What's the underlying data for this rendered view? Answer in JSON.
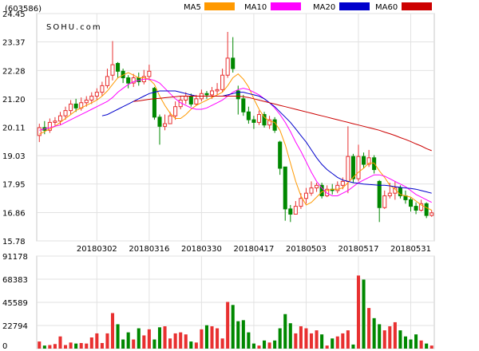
{
  "chart_data": [
    {
      "type": "candlestick",
      "code": "(603586)",
      "watermark": "SOHU.com",
      "y_ticks": [
        "24.45",
        "23.37",
        "22.28",
        "21.20",
        "20.11",
        "19.03",
        "17.95",
        "16.86",
        "15.78"
      ],
      "ylim": [
        15.78,
        24.45
      ],
      "x_labels": [
        {
          "label": "20180302",
          "index": 11
        },
        {
          "label": "20180316",
          "index": 21
        },
        {
          "label": "20180330",
          "index": 31
        },
        {
          "label": "20180417",
          "index": 41
        },
        {
          "label": "20180503",
          "index": 51
        },
        {
          "label": "20180517",
          "index": 61
        },
        {
          "label": "20180531",
          "index": 71
        }
      ],
      "legend": [
        {
          "name": "MA5",
          "color": "#ff9900"
        },
        {
          "name": "MA10",
          "color": "#ff00ff"
        },
        {
          "name": "MA20",
          "color": "#0000cc"
        },
        {
          "name": "MA60",
          "color": "#cc0000"
        }
      ],
      "up_color": "#e83030",
      "down_color": "#008800",
      "candles": [
        [
          19.8,
          20.1,
          19.55,
          20.25
        ],
        [
          20.1,
          20.0,
          19.85,
          20.35
        ],
        [
          20.0,
          20.3,
          19.9,
          20.45
        ],
        [
          20.3,
          20.35,
          20.15,
          20.5
        ],
        [
          20.35,
          20.55,
          20.2,
          20.7
        ],
        [
          20.55,
          20.75,
          20.4,
          20.9
        ],
        [
          20.75,
          21.0,
          20.6,
          21.15
        ],
        [
          21.0,
          20.85,
          20.7,
          21.2
        ],
        [
          20.85,
          21.05,
          20.75,
          21.25
        ],
        [
          21.05,
          21.15,
          20.9,
          21.3
        ],
        [
          21.15,
          21.3,
          21.0,
          21.45
        ],
        [
          21.3,
          21.45,
          21.15,
          21.6
        ],
        [
          21.45,
          21.7,
          21.3,
          21.85
        ],
        [
          21.7,
          22.05,
          21.6,
          22.35
        ],
        [
          22.1,
          22.5,
          21.9,
          23.4
        ],
        [
          22.55,
          22.25,
          22.0,
          22.6
        ],
        [
          22.25,
          22.0,
          21.8,
          22.35
        ],
        [
          22.0,
          21.8,
          21.6,
          22.1
        ],
        [
          21.8,
          22.0,
          21.65,
          22.15
        ],
        [
          22.0,
          21.85,
          21.7,
          22.2
        ],
        [
          21.85,
          22.05,
          21.75,
          22.3
        ],
        [
          22.05,
          22.25,
          21.9,
          22.5
        ],
        [
          21.6,
          20.5,
          20.4,
          21.65
        ],
        [
          20.5,
          20.15,
          19.45,
          20.6
        ],
        [
          20.15,
          20.25,
          20.0,
          20.6
        ],
        [
          20.25,
          20.55,
          20.3,
          20.7
        ],
        [
          20.55,
          20.9,
          20.4,
          21.1
        ],
        [
          20.9,
          21.15,
          20.8,
          21.3
        ],
        [
          21.15,
          21.3,
          21.0,
          21.45
        ],
        [
          21.3,
          21.0,
          20.9,
          21.4
        ],
        [
          21.0,
          21.2,
          20.95,
          21.35
        ],
        [
          21.2,
          21.4,
          21.1,
          21.55
        ],
        [
          21.4,
          21.35,
          21.2,
          21.5
        ],
        [
          21.35,
          21.5,
          21.2,
          21.65
        ],
        [
          21.5,
          21.55,
          21.35,
          21.8
        ],
        [
          21.55,
          22.1,
          21.45,
          22.35
        ],
        [
          22.1,
          22.75,
          22.0,
          23.75
        ],
        [
          22.75,
          22.35,
          22.2,
          23.55
        ],
        [
          21.5,
          21.2,
          20.6,
          21.7
        ],
        [
          21.2,
          20.7,
          20.55,
          21.35
        ],
        [
          20.7,
          20.4,
          20.25,
          20.9
        ],
        [
          20.4,
          20.3,
          20.05,
          20.55
        ],
        [
          20.3,
          20.6,
          20.2,
          20.75
        ],
        [
          20.6,
          20.2,
          20.1,
          20.7
        ],
        [
          20.2,
          20.4,
          20.05,
          20.55
        ],
        [
          20.4,
          20.0,
          19.9,
          20.5
        ],
        [
          19.55,
          18.55,
          18.3,
          19.6
        ],
        [
          18.6,
          17.0,
          16.55,
          18.6
        ],
        [
          17.0,
          16.8,
          16.5,
          17.15
        ],
        [
          16.8,
          17.1,
          16.85,
          17.3
        ],
        [
          17.1,
          17.4,
          17.0,
          17.6
        ],
        [
          17.4,
          17.6,
          17.2,
          17.8
        ],
        [
          17.6,
          17.8,
          17.5,
          18.05
        ],
        [
          17.8,
          17.9,
          17.65,
          18.0
        ],
        [
          17.9,
          17.5,
          17.4,
          18.0
        ],
        [
          17.5,
          17.75,
          17.45,
          17.9
        ],
        [
          17.75,
          17.7,
          17.55,
          17.95
        ],
        [
          17.7,
          17.9,
          17.6,
          18.05
        ],
        [
          17.9,
          18.05,
          17.75,
          18.2
        ],
        [
          18.05,
          19.0,
          17.6,
          20.15
        ],
        [
          19.0,
          18.15,
          18.0,
          19.1
        ],
        [
          18.15,
          19.0,
          18.05,
          19.45
        ],
        [
          19.0,
          18.7,
          18.55,
          19.15
        ],
        [
          18.7,
          18.95,
          18.6,
          19.25
        ],
        [
          18.95,
          18.5,
          18.35,
          19.05
        ],
        [
          18.05,
          17.05,
          16.5,
          18.1
        ],
        [
          17.05,
          17.5,
          17.0,
          17.7
        ],
        [
          17.5,
          17.6,
          17.4,
          18.0
        ],
        [
          17.6,
          17.8,
          17.35,
          18.05
        ],
        [
          17.8,
          17.5,
          17.4,
          17.9
        ],
        [
          17.5,
          17.35,
          17.2,
          17.7
        ],
        [
          17.35,
          17.1,
          16.9,
          17.45
        ],
        [
          17.1,
          16.95,
          16.8,
          17.25
        ],
        [
          16.95,
          17.2,
          16.9,
          17.35
        ],
        [
          17.2,
          16.75,
          16.65,
          17.25
        ],
        [
          16.75,
          16.85,
          16.7,
          16.95
        ]
      ],
      "ma_series": [
        {
          "name": "MA5",
          "color": "#ff9900",
          "values": [
            19.85,
            19.95,
            20.05,
            20.15,
            20.3,
            20.45,
            20.6,
            20.75,
            20.85,
            20.95,
            21.05,
            21.15,
            21.3,
            21.5,
            21.75,
            22.0,
            22.1,
            22.2,
            22.1,
            22.0,
            22.0,
            21.95,
            21.75,
            21.3,
            20.95,
            20.65,
            20.45,
            20.45,
            20.6,
            20.8,
            20.95,
            21.05,
            21.15,
            21.25,
            21.35,
            21.45,
            21.7,
            22.0,
            22.15,
            21.95,
            21.65,
            21.2,
            20.8,
            20.5,
            20.35,
            20.3,
            20.0,
            19.45,
            18.75,
            18.05,
            17.5,
            17.15,
            17.25,
            17.45,
            17.65,
            17.7,
            17.75,
            17.75,
            17.8,
            18.0,
            18.2,
            18.4,
            18.55,
            18.75,
            18.75,
            18.45,
            18.2,
            17.9,
            17.75,
            17.55,
            17.5,
            17.45,
            17.3,
            17.15,
            17.05,
            16.95
          ]
        },
        {
          "name": "MA10",
          "color": "#ff00ff",
          "values": [
            20.0,
            20.05,
            20.1,
            20.15,
            20.2,
            20.3,
            20.4,
            20.5,
            20.6,
            20.7,
            20.8,
            20.9,
            21.0,
            21.1,
            21.25,
            21.45,
            21.6,
            21.75,
            21.85,
            21.9,
            21.95,
            21.95,
            21.9,
            21.8,
            21.6,
            21.4,
            21.2,
            21.05,
            20.95,
            20.85,
            20.8,
            20.8,
            20.85,
            20.95,
            21.05,
            21.15,
            21.3,
            21.45,
            21.55,
            21.6,
            21.55,
            21.45,
            21.35,
            21.2,
            21.05,
            20.85,
            20.6,
            20.3,
            19.95,
            19.55,
            19.2,
            18.8,
            18.4,
            18.05,
            17.8,
            17.6,
            17.5,
            17.5,
            17.6,
            17.7,
            17.85,
            18.0,
            18.1,
            18.2,
            18.3,
            18.3,
            18.25,
            18.15,
            18.05,
            17.95,
            17.85,
            17.7,
            17.55,
            17.45,
            17.35,
            17.25
          ]
        },
        {
          "name": "MA20",
          "color": "#0000cc",
          "values": [
            null,
            null,
            null,
            null,
            null,
            null,
            null,
            null,
            null,
            null,
            null,
            null,
            20.55,
            20.6,
            20.7,
            20.8,
            20.9,
            21.0,
            21.1,
            21.2,
            21.3,
            21.4,
            21.45,
            21.5,
            21.5,
            21.5,
            21.5,
            21.45,
            21.4,
            21.35,
            21.3,
            21.3,
            21.3,
            21.3,
            21.3,
            21.3,
            21.35,
            21.4,
            21.45,
            21.45,
            21.4,
            21.35,
            21.3,
            21.2,
            21.05,
            20.9,
            20.7,
            20.5,
            20.3,
            20.05,
            19.8,
            19.55,
            19.25,
            18.95,
            18.7,
            18.5,
            18.35,
            18.2,
            18.1,
            18.05,
            18.0,
            17.98,
            17.95,
            17.93,
            17.92,
            17.9,
            17.9,
            17.88,
            17.85,
            17.82,
            17.8,
            17.78,
            17.75,
            17.7,
            17.65,
            17.6
          ]
        },
        {
          "name": "MA60",
          "color": "#cc0000",
          "values": [
            null,
            null,
            null,
            null,
            null,
            null,
            null,
            null,
            null,
            null,
            null,
            null,
            null,
            null,
            null,
            null,
            null,
            null,
            21.1,
            21.12,
            21.15,
            21.18,
            21.2,
            21.22,
            21.24,
            21.26,
            21.28,
            21.3,
            21.3,
            21.3,
            21.3,
            21.3,
            21.3,
            21.3,
            21.3,
            21.3,
            21.3,
            21.3,
            21.3,
            21.28,
            21.25,
            21.2,
            21.15,
            21.1,
            21.05,
            21.0,
            20.95,
            20.9,
            20.85,
            20.8,
            20.75,
            20.7,
            20.65,
            20.6,
            20.55,
            20.5,
            20.45,
            20.4,
            20.35,
            20.3,
            20.25,
            20.2,
            20.15,
            20.1,
            20.05,
            20.0,
            19.93,
            19.87,
            19.8,
            19.72,
            19.65,
            19.57,
            19.48,
            19.4,
            19.3,
            19.22
          ]
        }
      ]
    },
    {
      "type": "bar",
      "name": "volume",
      "y_ticks": [
        "91178",
        "68383",
        "45589",
        "22794",
        "0"
      ],
      "ylim": [
        0,
        91178
      ],
      "values": [
        7000,
        3000,
        3500,
        4500,
        12000,
        3500,
        6000,
        5000,
        5500,
        5000,
        11000,
        15000,
        5500,
        15000,
        35000,
        24000,
        9000,
        16000,
        9000,
        20000,
        13000,
        19000,
        9000,
        21000,
        22000,
        10000,
        15000,
        16000,
        14000,
        7000,
        6000,
        19000,
        23000,
        22000,
        20000,
        10000,
        46000,
        43000,
        27000,
        28000,
        16000,
        5000,
        3000,
        8000,
        6000,
        8000,
        20000,
        34000,
        25000,
        15000,
        22000,
        20000,
        15000,
        18000,
        14000,
        3000,
        10000,
        12000,
        15000,
        18000,
        4000,
        72000,
        68000,
        40000,
        30000,
        24000,
        18000,
        22000,
        26000,
        18000,
        12000,
        9000,
        14000,
        8000,
        5000,
        3000
      ]
    }
  ]
}
